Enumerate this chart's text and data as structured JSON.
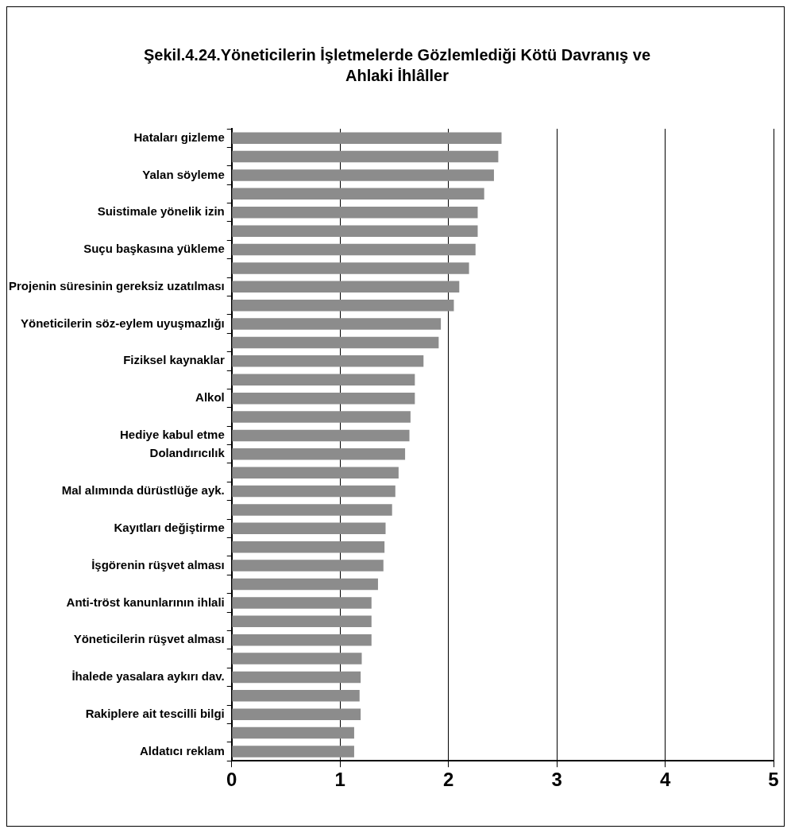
{
  "chart_data": {
    "type": "bar",
    "orientation": "horizontal",
    "title": "Şekil.4.24.Yöneticilerin İşletmelerde Gözlemlediği Kötü Davranış ve Ahlaki İhlâller",
    "categories": [
      "Hataları gizleme",
      null,
      "Yalan söyleme",
      null,
      "Suistimale yönelik izin",
      null,
      "Suçu başkasına yükleme",
      null,
      "Projenin süresinin gereksiz uzatılması",
      null,
      "Yöneticilerin söz-eylem uyuşmazlığı",
      null,
      "Fiziksel kaynaklar",
      null,
      "Alkol",
      null,
      "Hediye kabul etme",
      "Dolandırıcılık",
      null,
      "Mal alımında dürüstlüğe ayk.",
      null,
      "Kayıtları değiştirme",
      null,
      "İşgörenin rüşvet alması",
      null,
      "Anti-tröst kanunlarının ihlali",
      null,
      "Yöneticilerin rüşvet alması",
      null,
      "İhalede yasalara aykırı dav.",
      null,
      "Rakiplere ait tescilli bilgi",
      null,
      "Aldatıcı reklam"
    ],
    "values": [
      2.49,
      2.46,
      2.42,
      2.33,
      2.27,
      2.27,
      2.25,
      2.19,
      2.1,
      2.05,
      1.93,
      1.91,
      1.77,
      1.69,
      1.69,
      1.65,
      1.64,
      1.6,
      1.54,
      1.51,
      1.48,
      1.42,
      1.41,
      1.4,
      1.35,
      1.29,
      1.29,
      1.29,
      1.2,
      1.19,
      1.18,
      1.19,
      1.13,
      1.13
    ],
    "color": "#8c8c8c",
    "xlim": [
      0,
      5
    ],
    "xticks": [
      0,
      1,
      2,
      3,
      4,
      5
    ],
    "grid": "x"
  }
}
